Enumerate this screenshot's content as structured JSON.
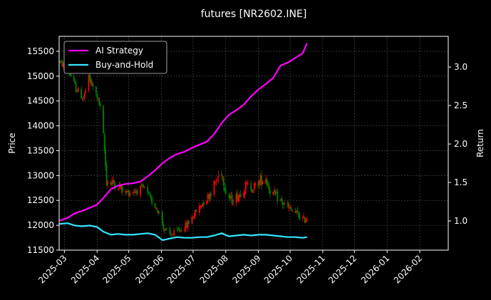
{
  "chart_data": {
    "type": "candlestick+line",
    "title": "futures [NR2602.INE]",
    "ylabel_left": "Price",
    "ylabel_right": "Return",
    "x_range": [
      "2025-02-24",
      "2026-02-28"
    ],
    "x_ticks": [
      "2025-03",
      "2025-04",
      "2025-05",
      "2025-06",
      "2025-07",
      "2025-08",
      "2025-09",
      "2025-10",
      "2025-11",
      "2025-12",
      "2026-01",
      "2026-02"
    ],
    "ylim_left": [
      11500,
      15800
    ],
    "yticks_left": [
      11500,
      12000,
      12500,
      13000,
      13500,
      14000,
      14500,
      15000,
      15500
    ],
    "ylim_right": [
      0.62,
      3.4
    ],
    "yticks_right": [
      1.0,
      1.5,
      2.0,
      2.5,
      3.0
    ],
    "grid": true,
    "legend": {
      "placement": "top-left",
      "entries": [
        "AI Strategy",
        "Buy-and-Hold"
      ]
    },
    "colors": {
      "up": "#ff0000",
      "down": "#008000",
      "ai": "#ff00ff",
      "bh": "#33e6ff",
      "background": "#000000",
      "grid": "#555555"
    },
    "price_anchors": [
      [
        "2025-02-24",
        15300,
        60
      ],
      [
        "2025-03-05",
        15100,
        80
      ],
      [
        "2025-03-12",
        14750,
        90
      ],
      [
        "2025-03-19",
        14550,
        110
      ],
      [
        "2025-03-24",
        14950,
        100
      ],
      [
        "2025-04-01",
        14600,
        90
      ],
      [
        "2025-04-04",
        14350,
        90
      ],
      [
        "2025-04-07",
        13800,
        80
      ],
      [
        "2025-04-10",
        12900,
        160
      ],
      [
        "2025-04-15",
        12850,
        130
      ],
      [
        "2025-04-21",
        12800,
        110
      ],
      [
        "2025-04-28",
        12650,
        100
      ],
      [
        "2025-05-08",
        12700,
        100
      ],
      [
        "2025-05-16",
        12750,
        90
      ],
      [
        "2025-05-22",
        12500,
        90
      ],
      [
        "2025-05-29",
        12300,
        80
      ],
      [
        "2025-06-04",
        11900,
        90
      ],
      [
        "2025-06-10",
        11800,
        80
      ],
      [
        "2025-06-18",
        11900,
        80
      ],
      [
        "2025-06-25",
        12000,
        90
      ],
      [
        "2025-07-03",
        12250,
        90
      ],
      [
        "2025-07-10",
        12450,
        100
      ],
      [
        "2025-07-16",
        12600,
        110
      ],
      [
        "2025-07-22",
        12850,
        140
      ],
      [
        "2025-07-28",
        13100,
        160
      ],
      [
        "2025-08-01",
        12700,
        140
      ],
      [
        "2025-08-06",
        12500,
        130
      ],
      [
        "2025-08-13",
        12600,
        120
      ],
      [
        "2025-08-20",
        12800,
        120
      ],
      [
        "2025-08-27",
        12750,
        110
      ],
      [
        "2025-09-03",
        12900,
        130
      ],
      [
        "2025-09-08",
        12950,
        130
      ],
      [
        "2025-09-12",
        12700,
        120
      ],
      [
        "2025-09-19",
        12550,
        110
      ],
      [
        "2025-09-26",
        12400,
        100
      ],
      [
        "2025-10-09",
        12200,
        100
      ],
      [
        "2025-10-14",
        12100,
        100
      ],
      [
        "2025-10-17",
        12150,
        100
      ]
    ],
    "series": [
      {
        "name": "AI Strategy",
        "x": [
          "2025-02-24",
          "2025-03-04",
          "2025-03-11",
          "2025-03-18",
          "2025-03-25",
          "2025-04-01",
          "2025-04-07",
          "2025-04-14",
          "2025-04-21",
          "2025-04-28",
          "2025-05-05",
          "2025-05-12",
          "2025-05-19",
          "2025-05-26",
          "2025-06-02",
          "2025-06-09",
          "2025-06-16",
          "2025-06-23",
          "2025-06-30",
          "2025-07-07",
          "2025-07-14",
          "2025-07-21",
          "2025-07-28",
          "2025-08-04",
          "2025-08-11",
          "2025-08-18",
          "2025-08-25",
          "2025-09-01",
          "2025-09-08",
          "2025-09-15",
          "2025-09-22",
          "2025-09-29",
          "2025-10-06",
          "2025-10-13",
          "2025-10-17"
        ],
        "values": [
          1.0,
          1.04,
          1.1,
          1.13,
          1.17,
          1.21,
          1.3,
          1.41,
          1.46,
          1.48,
          1.49,
          1.51,
          1.58,
          1.66,
          1.75,
          1.82,
          1.87,
          1.9,
          1.95,
          1.99,
          2.03,
          2.13,
          2.27,
          2.38,
          2.44,
          2.51,
          2.62,
          2.71,
          2.78,
          2.86,
          3.02,
          3.06,
          3.12,
          3.18,
          3.31
        ]
      },
      {
        "name": "Buy-and-Hold",
        "x": [
          "2025-02-24",
          "2025-03-04",
          "2025-03-11",
          "2025-03-18",
          "2025-03-25",
          "2025-04-01",
          "2025-04-07",
          "2025-04-14",
          "2025-04-21",
          "2025-04-28",
          "2025-05-05",
          "2025-05-12",
          "2025-05-19",
          "2025-05-26",
          "2025-06-02",
          "2025-06-09",
          "2025-06-16",
          "2025-06-23",
          "2025-06-30",
          "2025-07-07",
          "2025-07-14",
          "2025-07-21",
          "2025-07-28",
          "2025-08-04",
          "2025-08-11",
          "2025-08-18",
          "2025-08-25",
          "2025-09-01",
          "2025-09-08",
          "2025-09-15",
          "2025-09-22",
          "2025-09-29",
          "2025-10-06",
          "2025-10-13",
          "2025-10-17"
        ],
        "values": [
          0.96,
          0.97,
          0.94,
          0.93,
          0.94,
          0.92,
          0.86,
          0.82,
          0.83,
          0.82,
          0.82,
          0.83,
          0.84,
          0.82,
          0.75,
          0.77,
          0.79,
          0.78,
          0.78,
          0.79,
          0.79,
          0.81,
          0.84,
          0.8,
          0.81,
          0.82,
          0.81,
          0.82,
          0.82,
          0.81,
          0.8,
          0.79,
          0.79,
          0.78,
          0.79
        ]
      }
    ]
  }
}
